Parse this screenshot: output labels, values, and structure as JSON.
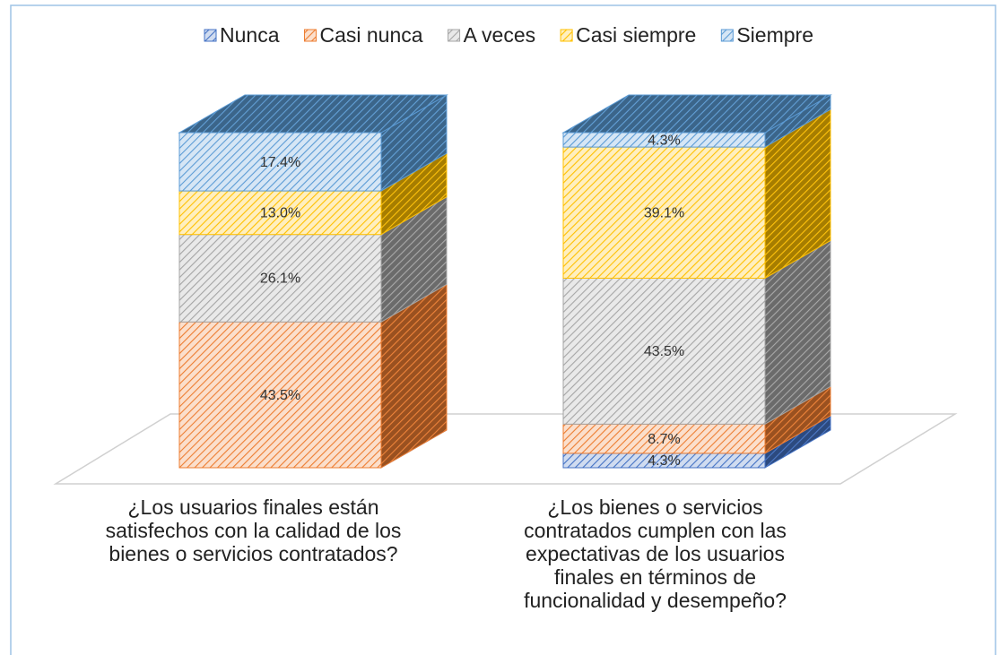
{
  "chart_data": {
    "type": "bar3d_stacked",
    "categories": [
      "¿Los usuarios finales están satisfechos con la calidad de los bienes o servicios contratados?",
      "¿Los bienes o servicios contratados cumplen con las expectativas de los usuarios finales en términos de funcionalidad y desempeño?"
    ],
    "series": [
      {
        "name": "Nunca",
        "color": "#4472c4",
        "values": [
          0,
          4.3
        ],
        "value_labels": [
          null,
          "4.3%"
        ]
      },
      {
        "name": "Casi nunca",
        "color": "#ed7d31",
        "values": [
          43.5,
          8.7
        ],
        "value_labels": [
          "43.5%",
          "8.7%"
        ]
      },
      {
        "name": "A veces",
        "color": "#a5a5a5",
        "values": [
          26.1,
          43.5
        ],
        "value_labels": [
          "26.1%",
          "43.5%"
        ]
      },
      {
        "name": "Casi siempre",
        "color": "#ffc000",
        "values": [
          13.0,
          39.1
        ],
        "value_labels": [
          "13.0%",
          "39.1%"
        ]
      },
      {
        "name": "Siempre",
        "color": "#5b9bd5",
        "values": [
          17.4,
          4.3
        ],
        "value_labels": [
          "17.4%",
          "4.3%"
        ]
      }
    ],
    "legend": "top"
  }
}
